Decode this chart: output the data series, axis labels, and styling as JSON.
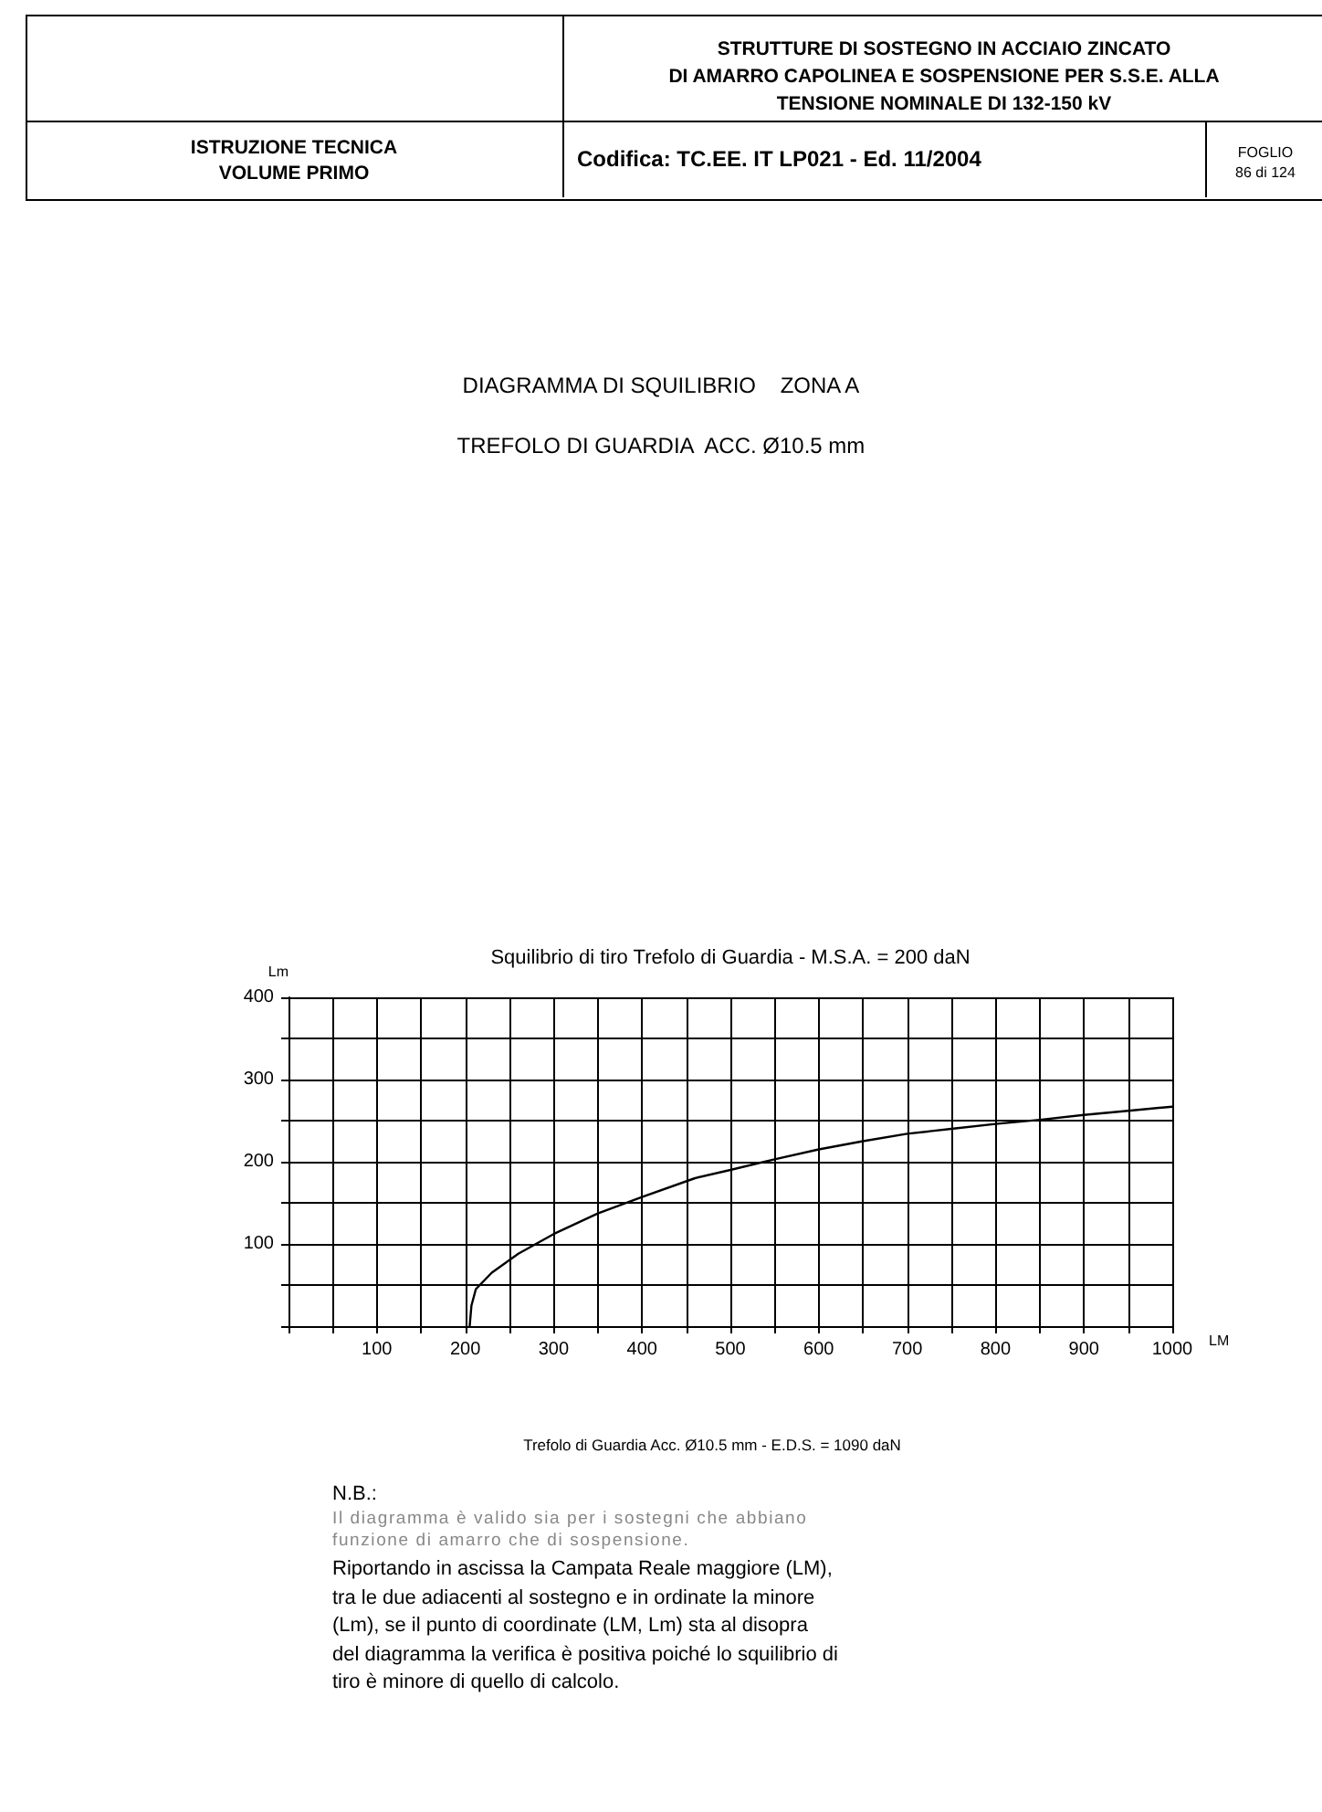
{
  "chart_data": {
    "type": "line",
    "title": "Squilibrio di tiro Trefolo di Guardia - M.S.A. = 200 daN",
    "xlabel": "LM",
    "ylabel": "Lm",
    "annotations": [
      "STRUTTURE DI SOSTEGNO IN ACCIAIO ZINCATO\nDI AMARRO CAPOLINEA E SOSPENSIONE PER S.S.E. ALLA\nTENSIONE NOMINALE DI 132-150 kV",
      "ISTRUZIONE TECNICA\nVOLUME PRIMO",
      "Codifica: TC.EE. IT LP021 - Ed. 11/2004",
      "FOGLIO\n86 di 124",
      "DIAGRAMMA DI SQUILIBRIO    ZONA A",
      "TREFOLO DI GUARDIA  ACC. Ø10.5 mm",
      "Trefolo di Guardia Acc. Ø10.5 mm - E.D.S. = 1090 daN",
      "N.B.:",
      "Il diagramma è valido sia per i sostegni che abbiano\nfunzione di amarro che di sospensione.",
      "Riportando in ascissa la Campata Reale maggiore (LM),\ntra le due adiacenti al sostegno e in ordinate la minore\n(Lm), se il punto di coordinate (LM, Lm) sta al disopra\ndel diagramma la verifica è positiva poiché lo squilibrio di\ntiro è minore di quello di calcolo."
    ],
    "x": [
      205,
      207,
      212,
      230,
      260,
      300,
      350,
      400,
      460,
      500,
      550,
      600,
      650,
      700,
      750,
      800,
      850,
      900,
      950,
      1000
    ],
    "series": [
      {
        "color": "#000000",
        "values": [
          0,
          25,
          45,
          65,
          88,
          112,
          137,
          157,
          180,
          190,
          203,
          215,
          225,
          234,
          240,
          246,
          251,
          257,
          262,
          267
        ]
      }
    ],
    "xlim": [
      0,
      1000
    ],
    "ylim": [
      0,
      400
    ],
    "xticks": [
      {
        "value": 0,
        "label": null
      },
      {
        "value": 50,
        "label": null
      },
      100,
      {
        "value": 150,
        "label": null
      },
      200,
      {
        "value": 250,
        "label": null
      },
      300,
      {
        "value": 350,
        "label": null
      },
      400,
      {
        "value": 450,
        "label": null
      },
      500,
      {
        "value": 550,
        "label": null
      },
      600,
      {
        "value": 650,
        "label": null
      },
      700,
      {
        "value": 750,
        "label": null
      },
      800,
      {
        "value": 850,
        "label": null
      },
      900,
      {
        "value": 950,
        "label": null
      },
      1000
    ],
    "yticks": [
      {
        "value": 0,
        "label": null
      },
      {
        "value": 50,
        "label": null
      },
      100,
      {
        "value": 150,
        "label": null
      },
      200,
      {
        "value": 250,
        "label": null
      },
      300,
      {
        "value": 350,
        "label": null
      },
      400
    ],
    "grid": true,
    "marker": "none",
    "line_style": "solid"
  }
}
